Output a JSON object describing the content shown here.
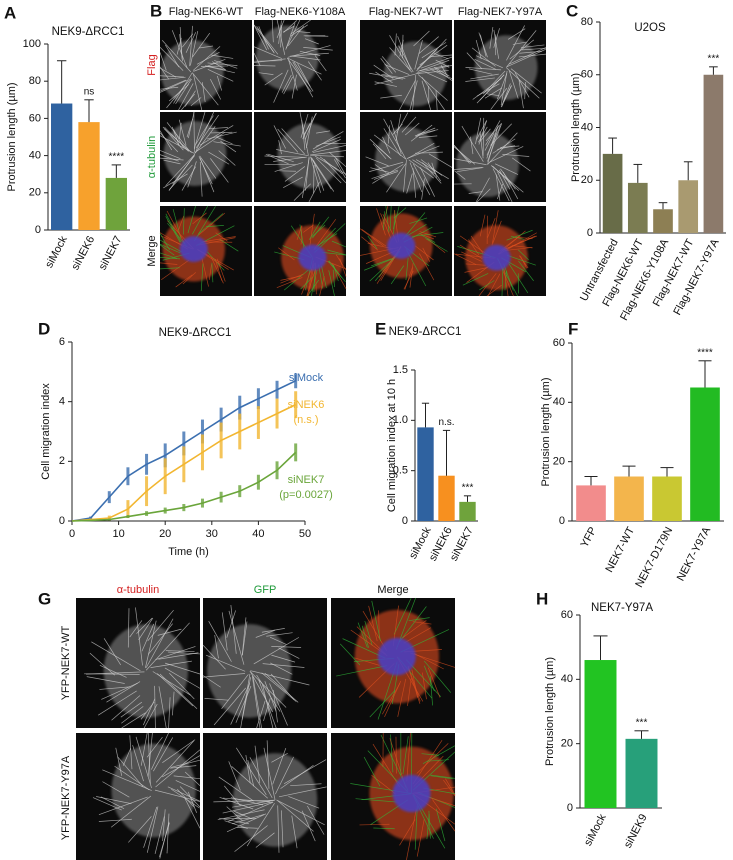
{
  "panel_letters": [
    "A",
    "B",
    "C",
    "D",
    "E",
    "F",
    "G",
    "H"
  ],
  "micrographs": {
    "B": {
      "columns": [
        "Flag-NEK6-WT",
        "Flag-NEK6-Y108A",
        "Flag-NEK7-WT",
        "Flag-NEK7-Y97A"
      ],
      "rows": [
        "Flag",
        "α-tubulin",
        "Merge"
      ]
    },
    "G": {
      "columns": [
        "α-tubulin",
        "GFP",
        "Merge"
      ],
      "rows": [
        "YFP-NEK7-WT",
        "YFP-NEK7-Y97A"
      ]
    }
  },
  "chart_data": [
    {
      "type": "bar",
      "title": "NEK9-ΔRCC1",
      "y_label": "Protrusion length (µm)",
      "categories": [
        "siMock",
        "siNEK6",
        "siNEK7"
      ],
      "values": [
        68,
        58,
        28
      ],
      "errors": [
        23,
        12,
        7
      ],
      "annotations": [
        null,
        "ns",
        "****"
      ],
      "colors": [
        "#2f62a0",
        "#f7a12c",
        "#6fa33c"
      ],
      "ylim": [
        0,
        100
      ],
      "yticks": [
        0,
        20,
        40,
        60,
        80,
        100
      ]
    },
    {
      "type": "bar",
      "title": "U2OS",
      "y_label": "Protrusion length (µm)",
      "categories": [
        "Untransfected",
        "Flag-NEK6-WT",
        "Flag-NEK6-Y108A",
        "Flag-NEK7-WT",
        "Flag-NEK7-Y97A"
      ],
      "values": [
        30,
        19,
        9,
        20,
        60
      ],
      "errors": [
        6,
        7,
        2.5,
        7,
        3
      ],
      "annotations": [
        null,
        null,
        null,
        null,
        "***"
      ],
      "colors": [
        "#686c48",
        "#7b7c52",
        "#8d7f54",
        "#a99a70",
        "#8c7a6b"
      ],
      "ylim": [
        0,
        80
      ],
      "yticks": [
        0,
        20,
        40,
        60,
        80
      ]
    },
    {
      "type": "line",
      "title": "NEK9-ΔRCC1",
      "x_label": "Time (h)",
      "y_label": "Cell migration index",
      "x": [
        0,
        4,
        8,
        12,
        16,
        20,
        24,
        28,
        32,
        36,
        40,
        44,
        48
      ],
      "series": [
        {
          "name": "siMock",
          "note": null,
          "color": "#3b6fb0",
          "values": [
            0,
            0.1,
            0.8,
            1.5,
            1.9,
            2.2,
            2.6,
            3.0,
            3.4,
            3.8,
            4.1,
            4.4,
            4.7
          ],
          "errors": [
            0,
            0.05,
            0.2,
            0.3,
            0.35,
            0.4,
            0.4,
            0.4,
            0.4,
            0.4,
            0.35,
            0.3,
            0.25
          ]
        },
        {
          "name": "siNEK6",
          "note": "(n.s.)",
          "color": "#f2b630",
          "values": [
            0,
            0.05,
            0.1,
            0.4,
            1.0,
            1.5,
            1.9,
            2.3,
            2.7,
            3.0,
            3.3,
            3.6,
            3.9
          ],
          "errors": [
            0,
            0.03,
            0.08,
            0.3,
            0.5,
            0.6,
            0.6,
            0.6,
            0.6,
            0.6,
            0.55,
            0.5,
            0.45
          ]
        },
        {
          "name": "siNEK7",
          "note": "(p=0.0027)",
          "color": "#6aa53a",
          "values": [
            0,
            0.02,
            0.05,
            0.15,
            0.25,
            0.35,
            0.45,
            0.6,
            0.8,
            1.0,
            1.3,
            1.7,
            2.3
          ],
          "errors": [
            0,
            0.01,
            0.03,
            0.05,
            0.08,
            0.1,
            0.12,
            0.15,
            0.18,
            0.2,
            0.25,
            0.3,
            0.3
          ]
        }
      ],
      "xlim": [
        0,
        50
      ],
      "xticks": [
        0,
        10,
        20,
        30,
        40,
        50
      ],
      "ylim": [
        0,
        6
      ],
      "yticks": [
        0,
        2,
        4,
        6
      ]
    },
    {
      "type": "bar",
      "title": "NEK9-ΔRCC1",
      "y_label": "Cell migration index at 10 h",
      "categories": [
        "siMock",
        "siNEK6",
        "siNEK7"
      ],
      "values": [
        0.93,
        0.45,
        0.19
      ],
      "errors": [
        0.24,
        0.45,
        0.06
      ],
      "annotations": [
        null,
        "n.s.",
        "***"
      ],
      "colors": [
        "#2f62a0",
        "#f7901f",
        "#6fa33c"
      ],
      "ylim": [
        0,
        1.5
      ],
      "yticks": [
        0,
        0.5,
        {
          "value": 1,
          "label": "1.0"
        },
        1.5
      ]
    },
    {
      "type": "bar",
      "title": null,
      "y_label": "Protrusion length (µm)",
      "categories": [
        "YFP",
        "NEK7-WT",
        "NEK7-D179N",
        "NEK7-Y97A"
      ],
      "values": [
        12,
        15,
        15,
        45
      ],
      "errors": [
        3,
        3.5,
        3,
        9
      ],
      "annotations": [
        null,
        null,
        null,
        "****"
      ],
      "colors": [
        "#f28c8c",
        "#f3b54c",
        "#c9c832",
        "#22bb22"
      ],
      "ylim": [
        0,
        60
      ],
      "yticks": [
        0,
        20,
        40,
        60
      ]
    },
    {
      "type": "bar",
      "title": "NEK7-Y97A",
      "y_label": "Protrusion length (µm)",
      "categories": [
        "siMock",
        "siNEK9"
      ],
      "values": [
        46,
        21.5
      ],
      "errors": [
        7.5,
        2.5
      ],
      "annotations": [
        null,
        "***"
      ],
      "colors": [
        "#22c422",
        "#27a07a"
      ],
      "ylim": [
        0,
        60
      ],
      "yticks": [
        0,
        20,
        40,
        60
      ]
    }
  ]
}
